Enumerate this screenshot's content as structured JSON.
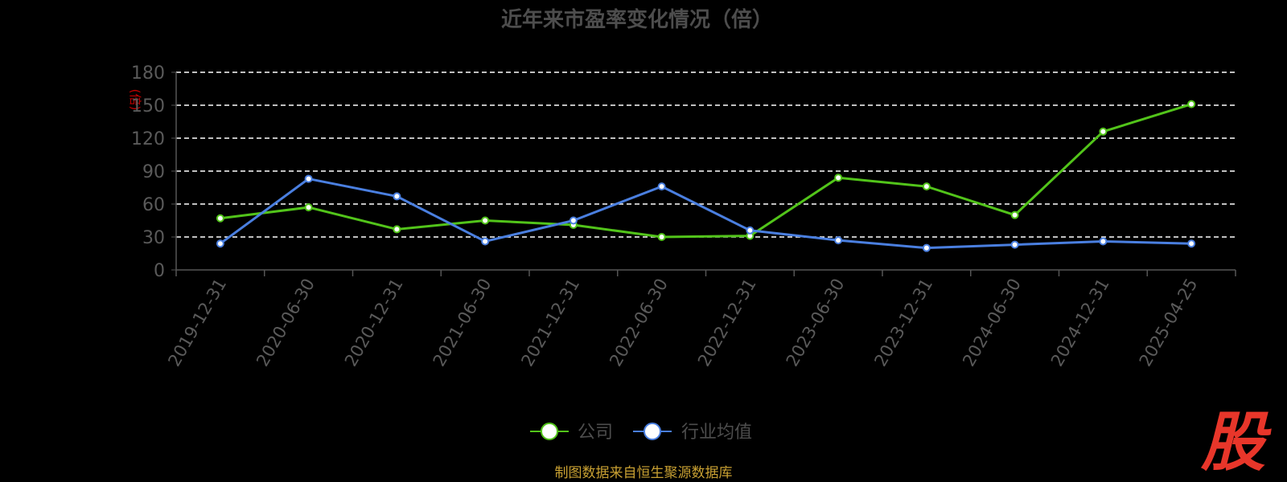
{
  "chart_data": {
    "type": "line",
    "title": "近年来市盈率变化情况（倍）",
    "ylabel": "(倍)",
    "ylim": [
      0,
      180
    ],
    "yticks": [
      0,
      30,
      60,
      90,
      120,
      150,
      180
    ],
    "grid": true,
    "legend_position": "bottom",
    "categories": [
      "2019-12-31",
      "2020-06-30",
      "2020-12-31",
      "2021-06-30",
      "2021-12-31",
      "2022-06-30",
      "2022-12-31",
      "2023-06-30",
      "2023-12-31",
      "2024-06-30",
      "2024-12-31",
      "2025-04-25"
    ],
    "series": [
      {
        "name": "公司",
        "color": "#52c41a",
        "values": [
          47,
          57,
          37,
          45,
          41,
          30,
          31,
          84,
          76,
          50,
          126,
          151
        ]
      },
      {
        "name": "行业均值",
        "color": "#4a7fe0",
        "values": [
          24,
          83,
          67,
          26,
          45,
          76,
          36,
          27,
          20,
          23,
          26,
          24
        ]
      }
    ],
    "source_note": "制图数据来自恒生聚源数据库",
    "watermark": "股"
  },
  "colors": {
    "title": "#4d4d4d",
    "axis_text": "#5a5a5a",
    "ylabel": "#c00000",
    "grid": "#ffffff",
    "axis_line": "#555555",
    "source": "#c8a032",
    "watermark": "#e8362a"
  }
}
